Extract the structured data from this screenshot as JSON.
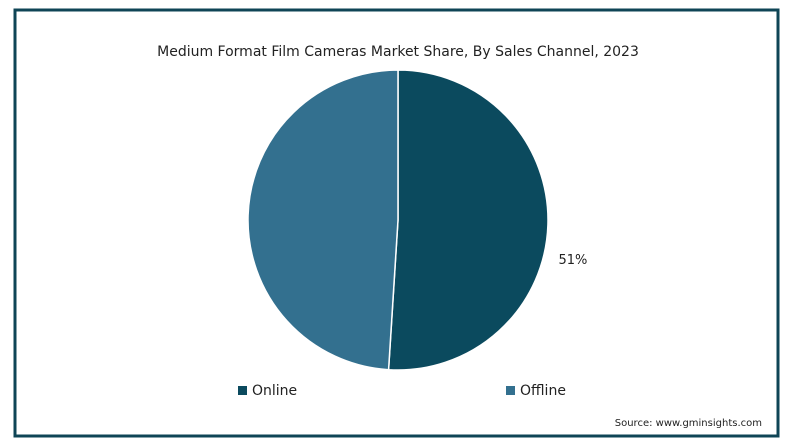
{
  "chart_data": {
    "type": "pie",
    "title": "Medium Format Film Cameras Market Share, By Sales Channel, 2023",
    "categories": [
      "Online",
      "Offline"
    ],
    "values": [
      51,
      49
    ],
    "value_labels": [
      "51%",
      null
    ],
    "colors": [
      "#0b4a5e",
      "#33708f"
    ],
    "legend": "bottom",
    "source": "Source: www.gminsights.com"
  }
}
